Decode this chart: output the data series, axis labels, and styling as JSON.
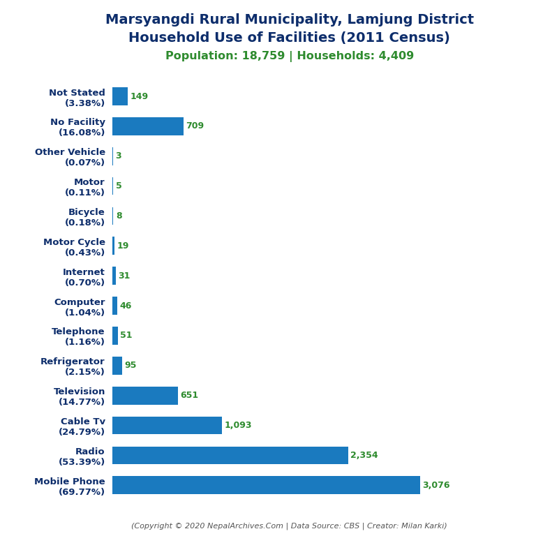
{
  "title_line1": "Marsyangdi Rural Municipality, Lamjung District",
  "title_line2": "Household Use of Facilities (2011 Census)",
  "subtitle": "Population: 18,759 | Households: 4,409",
  "footer": "(Copyright © 2020 NepalArchives.Com | Data Source: CBS | Creator: Milan Karki)",
  "categories": [
    "Not Stated\n(3.38%)",
    "No Facility\n(16.08%)",
    "Other Vehicle\n(0.07%)",
    "Motor\n(0.11%)",
    "Bicycle\n(0.18%)",
    "Motor Cycle\n(0.43%)",
    "Internet\n(0.70%)",
    "Computer\n(1.04%)",
    "Telephone\n(1.16%)",
    "Refrigerator\n(2.15%)",
    "Television\n(14.77%)",
    "Cable Tv\n(24.79%)",
    "Radio\n(53.39%)",
    "Mobile Phone\n(69.77%)"
  ],
  "values": [
    149,
    709,
    3,
    5,
    8,
    19,
    31,
    46,
    51,
    95,
    651,
    1093,
    2354,
    3076
  ],
  "value_labels": [
    "149",
    "709",
    "3",
    "5",
    "8",
    "19",
    "31",
    "46",
    "51",
    "95",
    "651",
    "1,093",
    "2,354",
    "3,076"
  ],
  "bar_color": "#1a7abf",
  "title_color": "#0d2d6b",
  "subtitle_color": "#2e8b2e",
  "value_color": "#2e8b2e",
  "footer_color": "#555555",
  "background_color": "#ffffff",
  "title_fontsize": 14,
  "subtitle_fontsize": 11.5,
  "label_fontsize": 9.5,
  "value_fontsize": 9,
  "footer_fontsize": 8
}
